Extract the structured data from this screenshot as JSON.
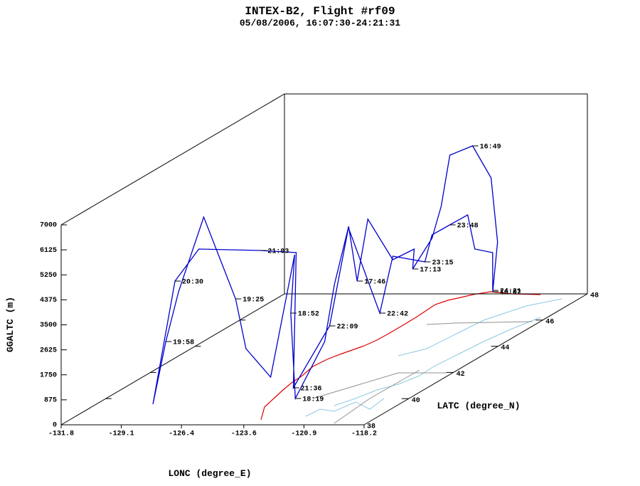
{
  "chart_data": {
    "type": "track3d",
    "title": "INTEX-B2, Flight #rf09",
    "subtitle": "05/08/2006, 16:07:30-24:21:31",
    "x_label": "LONC (degree_E)",
    "y_label": "LATC (degree_N)",
    "z_label": "GGALTC (m)",
    "color": "#0000cc",
    "xlim": [
      -131.8,
      -118.2
    ],
    "ylim": [
      38,
      48
    ],
    "zlim": [
      0,
      7000
    ],
    "xticks": [
      -131.8,
      -129.1,
      -126.4,
      -123.6,
      -120.9,
      -118.2
    ],
    "yticks": [
      38,
      40,
      42,
      44,
      46,
      48
    ],
    "zticks": [
      0,
      875,
      1750,
      2625,
      3500,
      4375,
      5250,
      6125,
      7000
    ],
    "x": [
      -122.35,
      -121.73,
      -121.72,
      -122.35,
      -123.17,
      -123.26,
      -123.47,
      -124.04,
      -123.97,
      -124.73,
      -125.65,
      -126.03,
      -126.31,
      -126.55,
      -124.98,
      -122.79,
      -125.0,
      -125.33,
      -124.4,
      -126.51,
      -127.98,
      -130.41,
      -130.54,
      -130.61,
      -128.68,
      -130.7,
      -130.63,
      -127.86,
      -126.26,
      -123.38,
      -124.26,
      -125.92,
      -124.51,
      -124.43,
      -123.49,
      -123.47,
      -122.87,
      -122.37,
      -122.25,
      -121.95,
      -122.35
    ],
    "y": [
      47.9,
      47.5,
      47.2,
      47,
      46.8,
      46.5,
      46.3,
      46,
      46,
      45.8,
      45.6,
      45.5,
      45.4,
      45,
      43,
      39.5,
      41.5,
      42,
      40,
      41,
      42,
      43,
      42,
      41.5,
      39,
      42,
      43,
      43,
      43,
      40,
      42.5,
      45,
      45,
      45.5,
      46,
      46.3,
      46.5,
      46.8,
      47,
      47.5,
      47.9
    ],
    "z": [
      120,
      2048,
      4426,
      5640,
      5408,
      3751,
      2723,
      1789,
      2486,
      2204,
      3717,
      1594,
      3557,
      1699,
      623,
      234,
      2307,
      4120,
      752,
      1290,
      2576,
      4982,
      2825,
      1310,
      264,
      3198,
      3861,
      3811,
      3737,
      379,
      1400,
      3692,
      702,
      2466,
      2038,
      2847,
      3104,
      3316,
      2028,
      1674,
      169
    ],
    "times": [
      "16:07",
      null,
      null,
      "16:49",
      null,
      null,
      null,
      "17:13",
      null,
      null,
      null,
      "17:46",
      null,
      null,
      null,
      "18:19",
      "18:52",
      null,
      null,
      null,
      "19:25",
      null,
      null,
      "19:58",
      null,
      "20:30",
      null,
      "21:03",
      null,
      "21:36",
      "22:09",
      null,
      "22:42",
      null,
      "23:15",
      null,
      "23:48",
      null,
      null,
      null,
      "24:21"
    ]
  }
}
